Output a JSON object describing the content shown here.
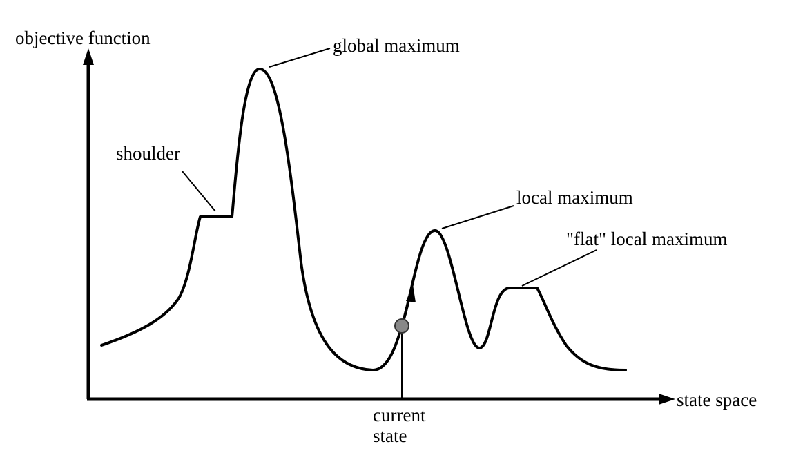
{
  "diagram": {
    "y_axis_label": "objective function",
    "x_axis_label": "state space",
    "annotations": {
      "global_maximum": "global maximum",
      "shoulder": "shoulder",
      "local_maximum": "local maximum",
      "flat_local_maximum": "\"flat\" local maximum",
      "current_state_line1": "current",
      "current_state_line2": "state"
    },
    "colors": {
      "curve": "#000000",
      "current_state_marker": "#888888"
    }
  }
}
